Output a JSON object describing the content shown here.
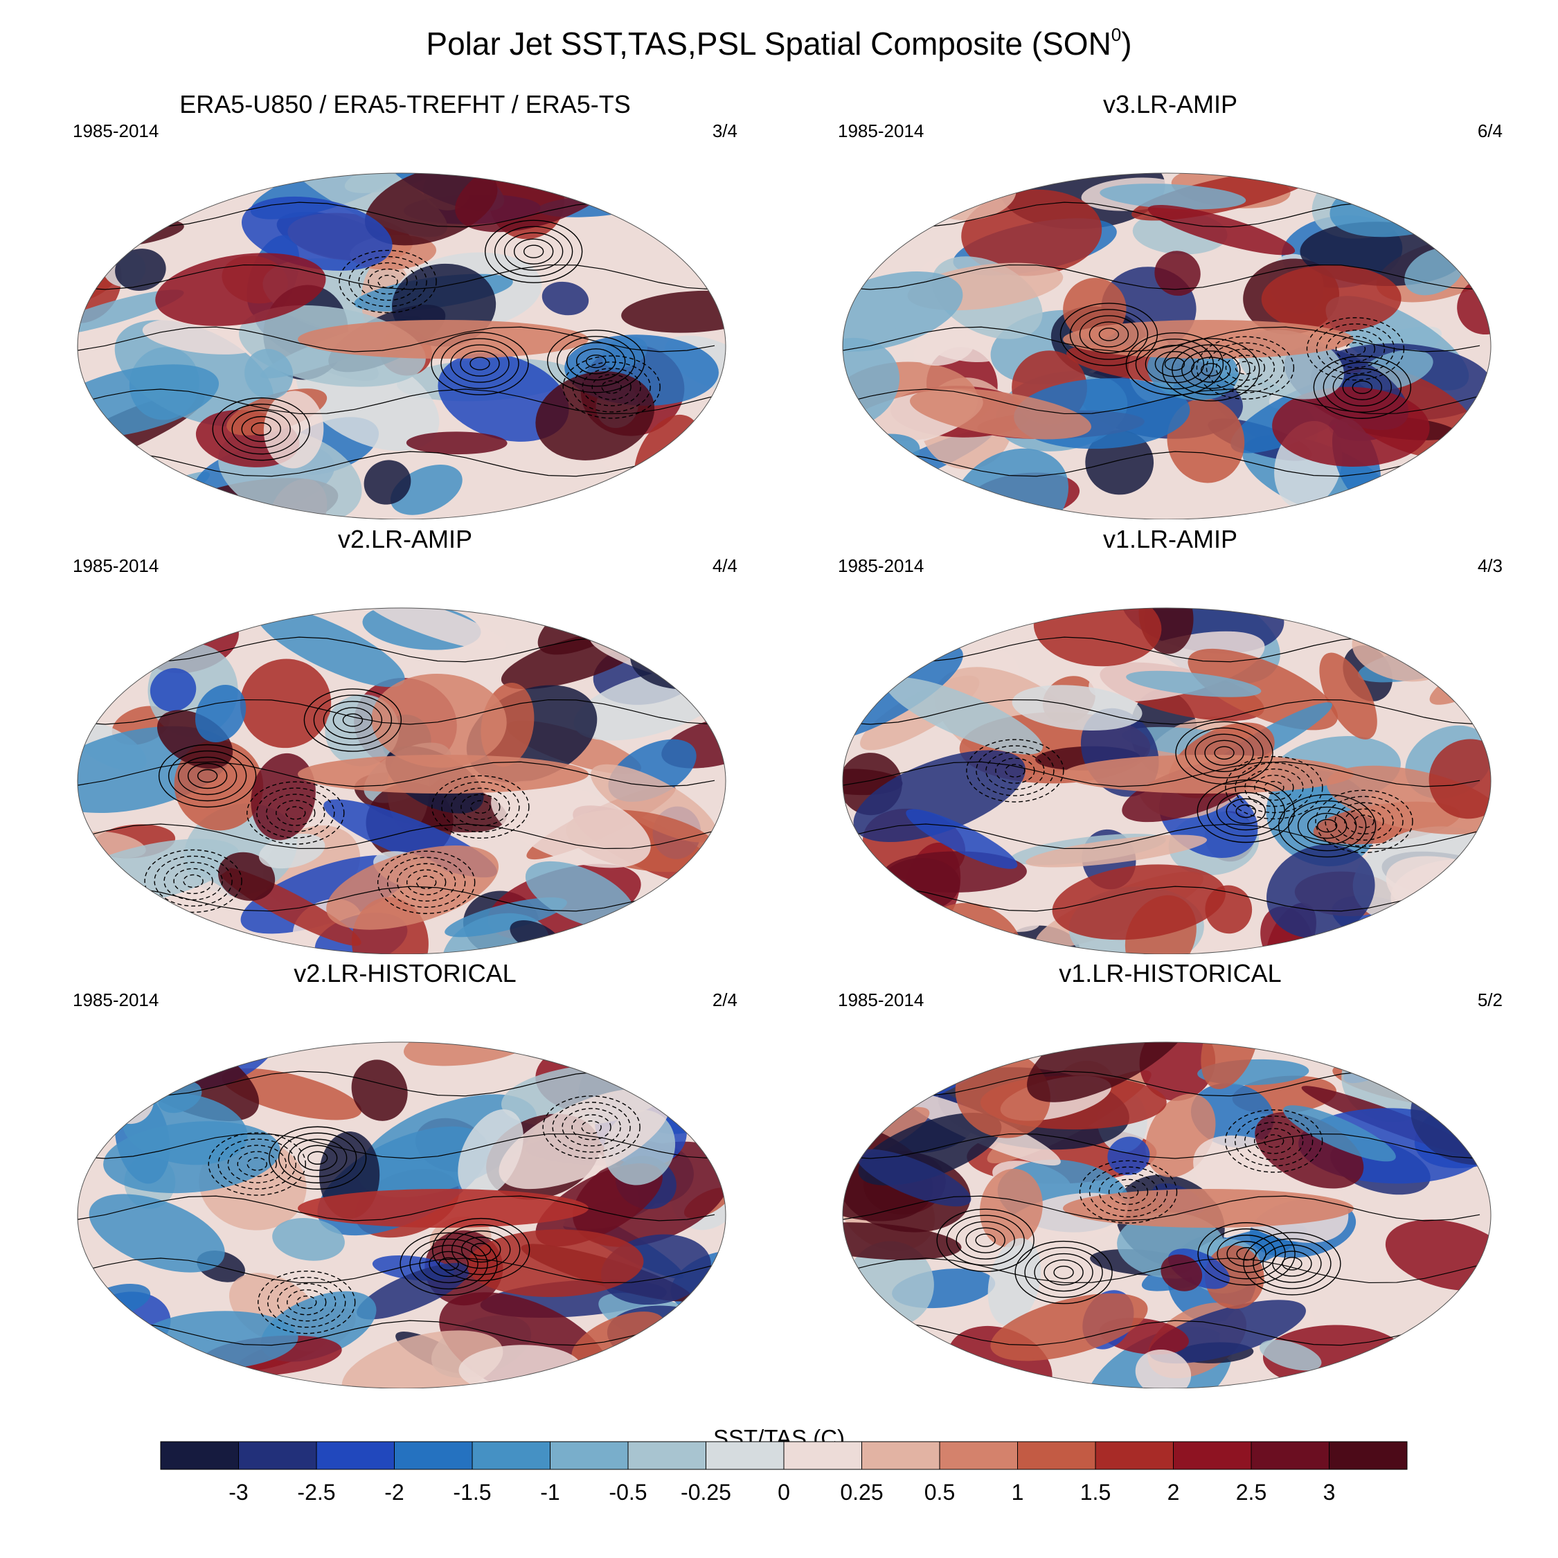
{
  "title": "Polar Jet SST,TAS,PSL Spatial Composite (SON",
  "title_superscript": "0",
  "title_close": ")",
  "panels": [
    {
      "title": "ERA5-U850 / ERA5-TREFHT / ERA5-TS",
      "years": "1985-2014",
      "ratio": "3/4"
    },
    {
      "title": "v3.LR-AMIP",
      "years": "1985-2014",
      "ratio": "6/4"
    },
    {
      "title": "v2.LR-AMIP",
      "years": "1985-2014",
      "ratio": "4/4"
    },
    {
      "title": "v1.LR-AMIP",
      "years": "1985-2014",
      "ratio": "4/3"
    },
    {
      "title": "v2.LR-HISTORICAL",
      "years": "1985-2014",
      "ratio": "2/4"
    },
    {
      "title": "v1.LR-HISTORICAL",
      "years": "1985-2014",
      "ratio": "5/2"
    }
  ],
  "colorbar": {
    "title": "SST/TAS (C)",
    "labels": [
      "-3",
      "-2.5",
      "-2",
      "-1.5",
      "-1",
      "-0.5",
      "-0.25",
      "0",
      "0.25",
      "0.5",
      "1",
      "1.5",
      "2",
      "2.5",
      "3"
    ],
    "colors": [
      "#161b3f",
      "#22307a",
      "#2148bd",
      "#2572c0",
      "#4591c4",
      "#79aecb",
      "#a8c4d0",
      "#d6dcdf",
      "#eddcd8",
      "#e2b3a3",
      "#d4826c",
      "#c35b44",
      "#a82b27",
      "#8e1322",
      "#6b0e21",
      "#4c0a18"
    ]
  },
  "map_colors": {
    "land_outline": "#000000",
    "contour": "#000000"
  }
}
